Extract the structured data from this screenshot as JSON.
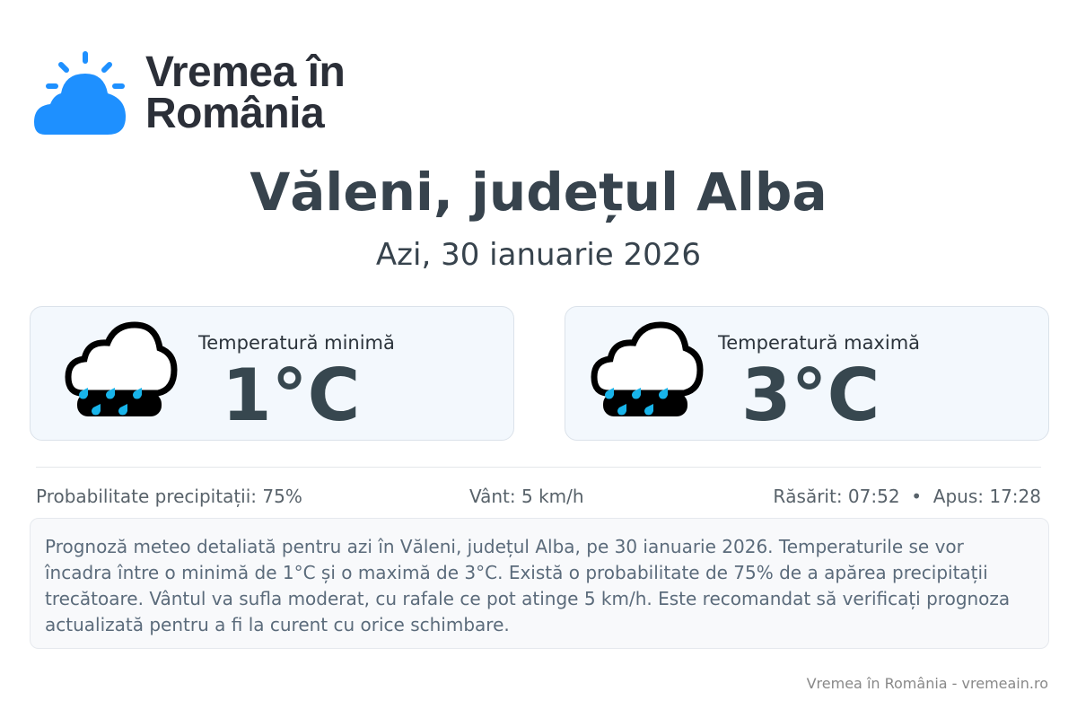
{
  "brand": {
    "line1": "Vremea în",
    "line2": "România",
    "color": "#1e90ff"
  },
  "location_title": "Văleni, județul Alba",
  "date": "Azi, 30 ianuarie 2026",
  "cards": [
    {
      "label": "Temperatură minimă",
      "value": "1°C",
      "icon": "rain-cloud-icon"
    },
    {
      "label": "Temperatură maximă",
      "value": "3°C",
      "icon": "rain-cloud-icon"
    }
  ],
  "stats": {
    "precip": "Probabilitate precipitații: 75%",
    "wind": "Vânt: 5 km/h",
    "sun": "Răsărit: 07:52  •  Apus: 17:28"
  },
  "description": "Prognoză meteo detaliată pentru azi în Văleni, județul Alba, pe 30 ianuarie 2026. Temperaturile se vor încadra între o minimă de 1°C și o maximă de 3°C. Există o probabilitate de 75% de a apărea precipitații trecătoare. Vântul va sufla moderat, cu rafale ce pot atinge 5 km/h. Este recomandat să verificați prognoza actualizată pentru a fi la curent cu orice schimbare.",
  "footer": "Vremea în România - vremeain.ro"
}
